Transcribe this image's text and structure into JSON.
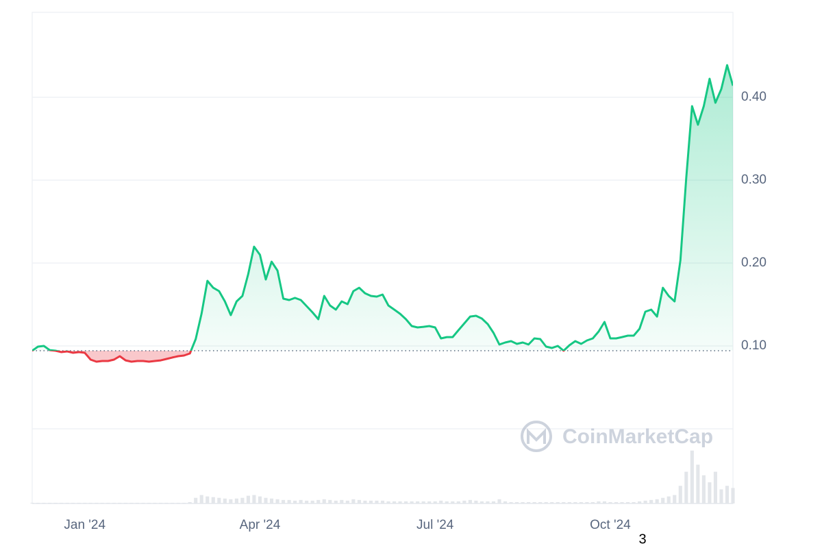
{
  "chart_data": {
    "type": "line",
    "categories": [
      null,
      null,
      null,
      null,
      null,
      null,
      null,
      null,
      null,
      "Jan '24",
      null,
      null,
      null,
      null,
      null,
      null,
      null,
      null,
      null,
      null,
      null,
      null,
      null,
      null,
      null,
      null,
      null,
      null,
      null,
      null,
      null,
      null,
      null,
      null,
      null,
      null,
      null,
      null,
      null,
      "Apr '24",
      null,
      null,
      null,
      null,
      null,
      null,
      null,
      null,
      null,
      null,
      null,
      null,
      null,
      null,
      null,
      null,
      null,
      null,
      null,
      null,
      null,
      null,
      null,
      null,
      null,
      null,
      null,
      null,
      null,
      "Jul '24",
      null,
      null,
      null,
      null,
      null,
      null,
      null,
      null,
      null,
      null,
      null,
      null,
      null,
      null,
      null,
      null,
      null,
      null,
      null,
      null,
      null,
      null,
      null,
      null,
      null,
      null,
      null,
      null,
      null,
      "Oct '24",
      null,
      null,
      null,
      null,
      null,
      null,
      null,
      null,
      null,
      null,
      null,
      null,
      null,
      null,
      null,
      null,
      null,
      null,
      null,
      null,
      null
    ],
    "series": [
      {
        "color": "#16c784",
        "below_color": "#ea3943",
        "values": [
          0.0942,
          0.0992,
          0.1,
          0.095,
          0.0942,
          0.0926,
          0.0934,
          0.0917,
          0.0926,
          0.0917,
          0.0835,
          0.081,
          0.0818,
          0.0818,
          0.0835,
          0.0876,
          0.0826,
          0.081,
          0.0818,
          0.0818,
          0.081,
          0.0818,
          0.0826,
          0.0843,
          0.086,
          0.0876,
          0.0884,
          0.0909,
          0.1083,
          0.1388,
          0.1785,
          0.1702,
          0.1661,
          0.1537,
          0.1372,
          0.1537,
          0.1603,
          0.1868,
          0.2198,
          0.2099,
          0.1802,
          0.2017,
          0.1909,
          0.157,
          0.1554,
          0.1579,
          0.1554,
          0.1479,
          0.1405,
          0.1322,
          0.1603,
          0.1488,
          0.1438,
          0.1537,
          0.1504,
          0.1661,
          0.1702,
          0.1636,
          0.1603,
          0.1595,
          0.162,
          0.1488,
          0.1438,
          0.1388,
          0.1322,
          0.124,
          0.1223,
          0.1231,
          0.124,
          0.1223,
          0.1091,
          0.1107,
          0.1107,
          0.119,
          0.1273,
          0.1355,
          0.1364,
          0.1331,
          0.1264,
          0.1157,
          0.1017,
          0.1041,
          0.1058,
          0.1025,
          0.1041,
          0.1017,
          0.1091,
          0.1083,
          0.0992,
          0.0975,
          0.1,
          0.0942,
          0.1008,
          0.1058,
          0.1025,
          0.1066,
          0.1091,
          0.1174,
          0.1289,
          0.1091,
          0.1091,
          0.1107,
          0.1124,
          0.1124,
          0.1207,
          0.1413,
          0.1438,
          0.1355,
          0.1702,
          0.1603,
          0.1537,
          0.2033,
          0.3025,
          0.3893,
          0.3669,
          0.3893,
          0.4223,
          0.3934,
          0.4099,
          0.4388,
          0.414
        ]
      },
      {
        "color": "#e3e6ea",
        "axis": "y2",
        "values": [
          1,
          1,
          1,
          1,
          1,
          1,
          1,
          1,
          1,
          1,
          1,
          1,
          1,
          1,
          1,
          1,
          1,
          1,
          1,
          1,
          1,
          1,
          1,
          1,
          1,
          1,
          1,
          2,
          8,
          12,
          10,
          9,
          8,
          7,
          6,
          7,
          8,
          11,
          12,
          10,
          8,
          7,
          6,
          5,
          5,
          4,
          5,
          4,
          4,
          5,
          6,
          5,
          4,
          5,
          4,
          6,
          5,
          4,
          4,
          4,
          4,
          3,
          3,
          3,
          3,
          3,
          3,
          3,
          3,
          3,
          4,
          3,
          3,
          3,
          4,
          5,
          4,
          3,
          3,
          3,
          6,
          3,
          2,
          2,
          2,
          2,
          2,
          2,
          2,
          2,
          2,
          2,
          2,
          2,
          2,
          2,
          2,
          3,
          3,
          2,
          2,
          2,
          2,
          2,
          3,
          4,
          5,
          6,
          8,
          10,
          12,
          25,
          45,
          75,
          55,
          40,
          30,
          45,
          20,
          25,
          22
        ]
      }
    ],
    "baseline": 0.0942,
    "ylim": [
      0,
      0.5025
    ],
    "yticks": [
      {
        "value": 0.1,
        "label": "0.10"
      },
      {
        "value": 0.2,
        "label": "0.20"
      },
      {
        "value": 0.3,
        "label": "0.30"
      },
      {
        "value": 0.4,
        "label": "0.40"
      }
    ],
    "y2lim": [
      0,
      100
    ],
    "grid": true,
    "watermark": "CoinMarketCap",
    "footer_text": "3"
  }
}
